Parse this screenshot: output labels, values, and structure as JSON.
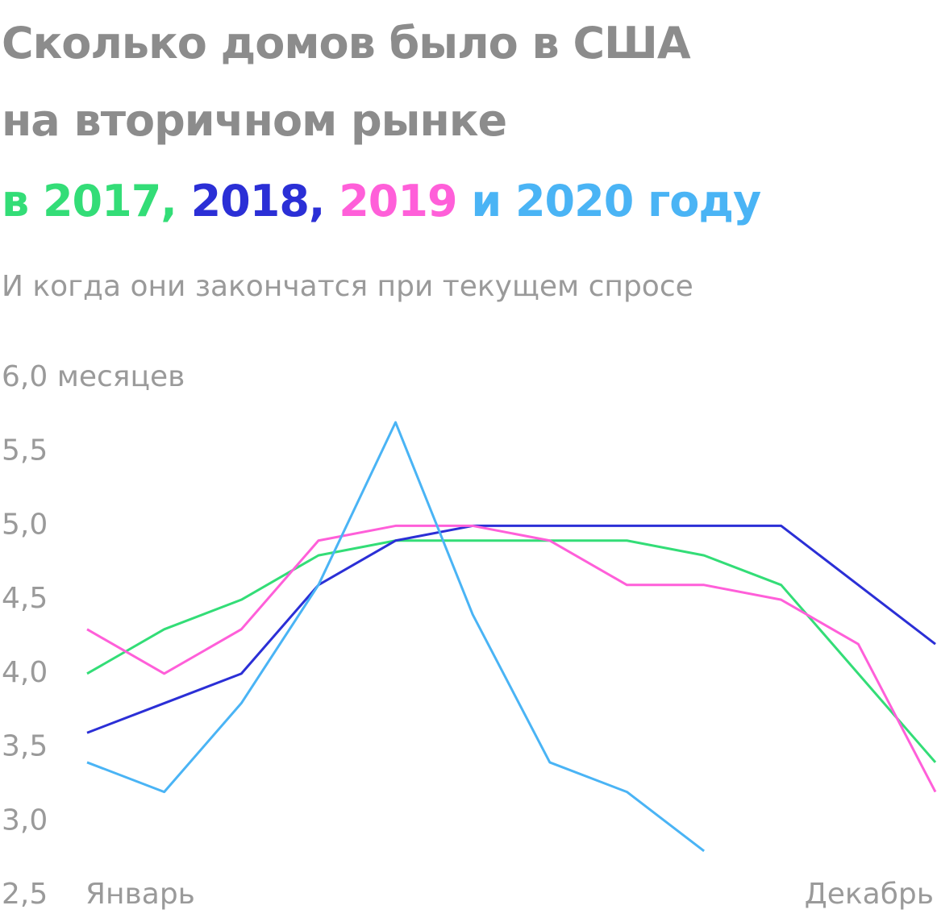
{
  "chart_data": {
    "type": "line",
    "title": [
      "Сколько домов было в США",
      "на вторичном рынке"
    ],
    "legend_text": [
      "в ",
      ", ",
      ", ",
      " и ",
      " году"
    ],
    "subtitle": "И когда они закончатся при текущем спросе",
    "categories": [
      "Январь",
      null,
      null,
      null,
      null,
      null,
      null,
      null,
      null,
      null,
      null,
      "Декабрь"
    ],
    "series": [
      {
        "name": "2017",
        "color": "#33dd77",
        "values": [
          4.0,
          4.3,
          4.5,
          4.8,
          4.9,
          4.9,
          4.9,
          4.9,
          4.8,
          4.6,
          4.0,
          3.4
        ]
      },
      {
        "name": "2018",
        "color": "#2b2fd6",
        "values": [
          3.6,
          3.8,
          4.0,
          4.6,
          4.9,
          5.0,
          5.0,
          5.0,
          5.0,
          5.0,
          4.6,
          4.2
        ]
      },
      {
        "name": "2019",
        "color": "#ff5fd9",
        "values": [
          4.3,
          4.0,
          4.3,
          4.9,
          5.0,
          5.0,
          4.9,
          4.6,
          4.6,
          4.5,
          4.2,
          3.2
        ]
      },
      {
        "name": "2020",
        "color": "#4ab4f5",
        "values": [
          3.4,
          3.2,
          3.8,
          4.6,
          5.7,
          4.4,
          3.4,
          3.2,
          2.8,
          null,
          null,
          null
        ]
      }
    ],
    "ylim": [
      2.5,
      6.0
    ],
    "yticks": [
      {
        "value": 2.5,
        "label": "2,5"
      },
      {
        "value": 3.0,
        "label": "3,0"
      },
      {
        "value": 3.5,
        "label": "3,5"
      },
      {
        "value": 4.0,
        "label": "4,0"
      },
      {
        "value": 4.5,
        "label": "4,5"
      },
      {
        "value": 5.0,
        "label": "5,0"
      },
      {
        "value": 5.5,
        "label": "5,5"
      },
      {
        "value": 6.0,
        "label": "6,0 месяцев"
      }
    ]
  }
}
